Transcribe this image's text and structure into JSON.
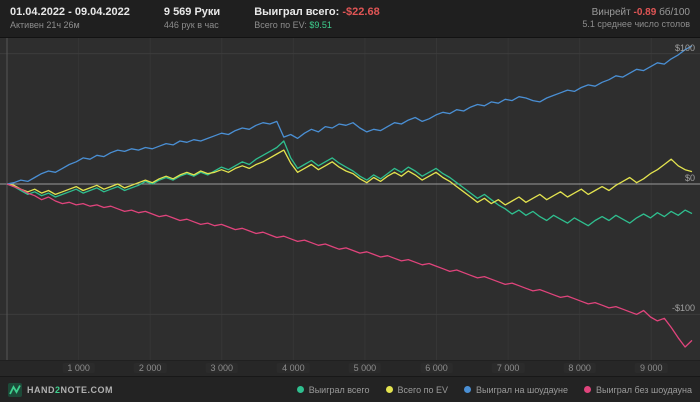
{
  "topbar": {
    "date_range": "01.04.2022 - 09.04.2022",
    "active_time": "Активен 21ч 26м",
    "hands": "9 569 Руки",
    "hands_per_hour": "446 рук в час",
    "won_total_label": "Выиграл всего:",
    "won_total_value": "-$22.68",
    "ev_total_label": "Всего по EV:",
    "ev_total_value": "$9.51",
    "winrate_label": "Винрейт",
    "winrate_value": "-0.89",
    "winrate_unit": "бб/100",
    "avg_tables": "5.1 среднее число столов"
  },
  "footer": {
    "logo_hand": "HAND",
    "logo_two": "2",
    "logo_note": "NOTE.COM"
  },
  "colors": {
    "background": "#2e2e2e",
    "topbar": "#1f1f1f",
    "stat_negative": "#e05555",
    "stat_positive": "#3ecf8e",
    "zero_line": "#9b9b9b"
  },
  "chart_data": {
    "type": "line",
    "title": "",
    "xlabel": "",
    "ylabel": "",
    "x_max": 9569,
    "ylim": [
      -135,
      112
    ],
    "grid": true,
    "legend_position": "bottom-right",
    "x_ticks": [
      {
        "value": 1000,
        "label": "1 000"
      },
      {
        "value": 2000,
        "label": "2 000"
      },
      {
        "value": 3000,
        "label": "3 000"
      },
      {
        "value": 4000,
        "label": "4 000"
      },
      {
        "value": 5000,
        "label": "5 000"
      },
      {
        "value": 6000,
        "label": "6 000"
      },
      {
        "value": 7000,
        "label": "7 000"
      },
      {
        "value": 8000,
        "label": "8 000"
      },
      {
        "value": 9000,
        "label": "9 000"
      }
    ],
    "y_ticks": [
      {
        "value": 100,
        "label": "$100"
      },
      {
        "value": 0,
        "label": "$0"
      },
      {
        "value": -100,
        "label": "-$100"
      }
    ],
    "series": [
      {
        "key": "won-total",
        "name": "Выиграл всего",
        "color": "#2fbf8f",
        "final_value": -22.68,
        "values": [
          0,
          -2,
          -5,
          -8,
          -6,
          -9,
          -7,
          -10,
          -8,
          -6,
          -4,
          -7,
          -5,
          -3,
          -6,
          -4,
          -2,
          -5,
          -3,
          -1,
          2,
          0,
          3,
          5,
          3,
          6,
          8,
          6,
          9,
          7,
          10,
          13,
          11,
          14,
          17,
          15,
          19,
          22,
          25,
          28,
          33,
          20,
          12,
          15,
          18,
          14,
          17,
          20,
          16,
          13,
          10,
          6,
          3,
          7,
          4,
          8,
          12,
          9,
          13,
          10,
          6,
          9,
          12,
          8,
          5,
          1,
          -3,
          -7,
          -11,
          -8,
          -12,
          -16,
          -19,
          -23,
          -20,
          -24,
          -21,
          -25,
          -28,
          -24,
          -27,
          -30,
          -26,
          -29,
          -32,
          -28,
          -25,
          -28,
          -24,
          -27,
          -30,
          -26,
          -23,
          -26,
          -22,
          -25,
          -21,
          -24,
          -20,
          -22.68
        ]
      },
      {
        "key": "ev-total",
        "name": "Всего по EV",
        "color": "#e3e34f",
        "final_value": 9.51,
        "values": [
          0,
          -1,
          -4,
          -6,
          -4,
          -7,
          -5,
          -8,
          -6,
          -4,
          -2,
          -5,
          -3,
          -1,
          -4,
          -2,
          0,
          -3,
          -1,
          1,
          3,
          1,
          4,
          6,
          4,
          7,
          9,
          7,
          10,
          8,
          9,
          11,
          9,
          12,
          14,
          12,
          15,
          17,
          20,
          23,
          26,
          16,
          9,
          12,
          15,
          11,
          14,
          17,
          13,
          10,
          8,
          4,
          1,
          5,
          2,
          6,
          9,
          6,
          10,
          7,
          3,
          6,
          9,
          5,
          2,
          -2,
          -6,
          -10,
          -14,
          -11,
          -15,
          -12,
          -16,
          -13,
          -10,
          -14,
          -11,
          -8,
          -12,
          -9,
          -6,
          -10,
          -7,
          -4,
          -8,
          -5,
          -2,
          -5,
          -1,
          2,
          5,
          1,
          4,
          8,
          11,
          15,
          19,
          14,
          11,
          9.51
        ]
      },
      {
        "key": "won-showdown",
        "name": "Выиграл на шоудауне",
        "color": "#4a8fd4",
        "final_value": 106,
        "values": [
          0,
          1,
          3,
          2,
          5,
          8,
          10,
          9,
          12,
          15,
          17,
          20,
          19,
          22,
          21,
          24,
          26,
          25,
          27,
          26,
          28,
          27,
          29,
          31,
          30,
          33,
          32,
          34,
          33,
          35,
          37,
          39,
          38,
          41,
          43,
          42,
          45,
          47,
          46,
          48,
          36,
          38,
          35,
          39,
          42,
          40,
          44,
          43,
          46,
          45,
          47,
          43,
          40,
          42,
          41,
          44,
          47,
          46,
          49,
          51,
          48,
          50,
          53,
          55,
          54,
          57,
          56,
          59,
          61,
          60,
          63,
          62,
          65,
          64,
          67,
          66,
          64,
          63,
          66,
          68,
          70,
          72,
          71,
          74,
          76,
          75,
          78,
          80,
          83,
          82,
          85,
          88,
          87,
          90,
          93,
          92,
          96,
          99,
          103,
          106
        ]
      },
      {
        "key": "won-no-showdown",
        "name": "Выиграл без шоудауна",
        "color": "#e0447c",
        "final_value": -120,
        "values": [
          0,
          -2,
          -4,
          -7,
          -9,
          -12,
          -10,
          -13,
          -15,
          -14,
          -16,
          -15,
          -17,
          -16,
          -18,
          -17,
          -19,
          -21,
          -20,
          -22,
          -21,
          -23,
          -25,
          -24,
          -26,
          -28,
          -27,
          -29,
          -31,
          -30,
          -32,
          -31,
          -33,
          -35,
          -34,
          -36,
          -38,
          -37,
          -39,
          -41,
          -40,
          -42,
          -44,
          -43,
          -45,
          -47,
          -46,
          -48,
          -50,
          -49,
          -51,
          -53,
          -52,
          -54,
          -56,
          -55,
          -57,
          -59,
          -58,
          -60,
          -62,
          -61,
          -63,
          -65,
          -67,
          -66,
          -68,
          -70,
          -72,
          -71,
          -73,
          -75,
          -77,
          -76,
          -78,
          -80,
          -82,
          -81,
          -83,
          -85,
          -87,
          -86,
          -88,
          -90,
          -92,
          -91,
          -93,
          -95,
          -94,
          -96,
          -98,
          -100,
          -97,
          -102,
          -105,
          -103,
          -110,
          -118,
          -125,
          -120
        ]
      }
    ]
  }
}
